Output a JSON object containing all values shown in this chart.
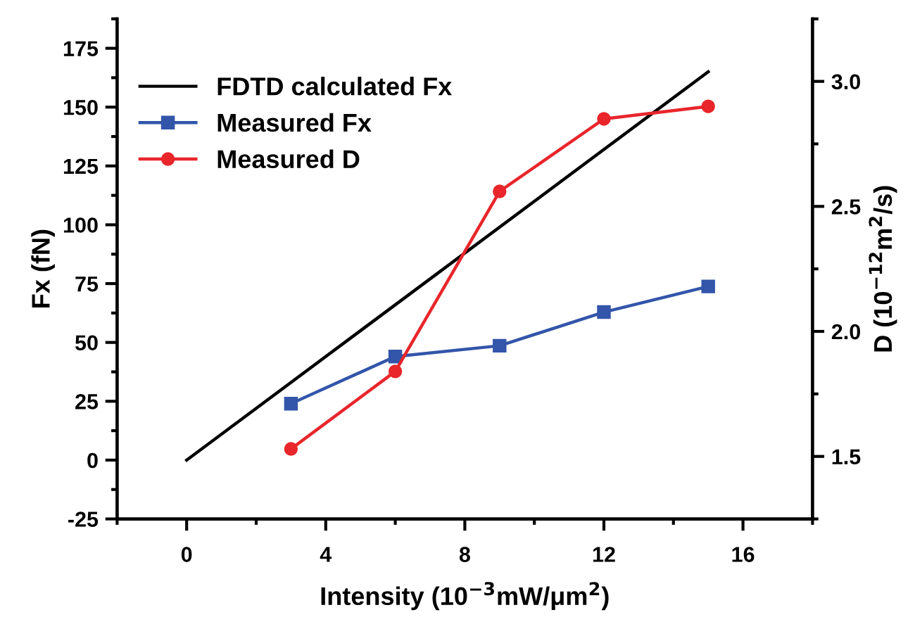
{
  "chart_data": {
    "type": "line",
    "xlabel": "Intensity (10$^{−3}$mW/μm$^{2}$)",
    "ylabel": "Fx (fN)",
    "y2label": "D (10$^{−12}$m$^{2}$/s)",
    "xlim": [
      -2,
      18
    ],
    "xticks": [
      0,
      4,
      8,
      12,
      16
    ],
    "ylim": [
      -25,
      187.5
    ],
    "yticks": [
      -25,
      0,
      25,
      50,
      75,
      100,
      125,
      150,
      175
    ],
    "y2lim": [
      1.25,
      3.25
    ],
    "y2ticks": [
      1.5,
      {
        "value": 2,
        "label": "2.0"
      },
      2.5,
      {
        "value": 3,
        "label": "3.0"
      }
    ],
    "legend": "top left",
    "grid": false,
    "line_style": "solid",
    "series": [
      {
        "name": "FDTD calculated Fx",
        "color": "#000000",
        "x": [
          0,
          15
        ],
        "values": [
          0,
          165
        ],
        "marker": "none"
      },
      {
        "name": "Measured Fx",
        "color": "#3355aa",
        "x": [
          3,
          6,
          9,
          12,
          15
        ],
        "values": [
          24,
          44,
          48.6,
          62.9,
          73.8
        ],
        "marker": "square"
      },
      {
        "name": "Measured D",
        "color": "#e8262b",
        "x": [
          3,
          6,
          9,
          12,
          15
        ],
        "values": [
          1.53,
          1.84,
          2.56,
          2.85,
          2.9
        ],
        "marker": "circle",
        "axis": "y2"
      }
    ]
  }
}
